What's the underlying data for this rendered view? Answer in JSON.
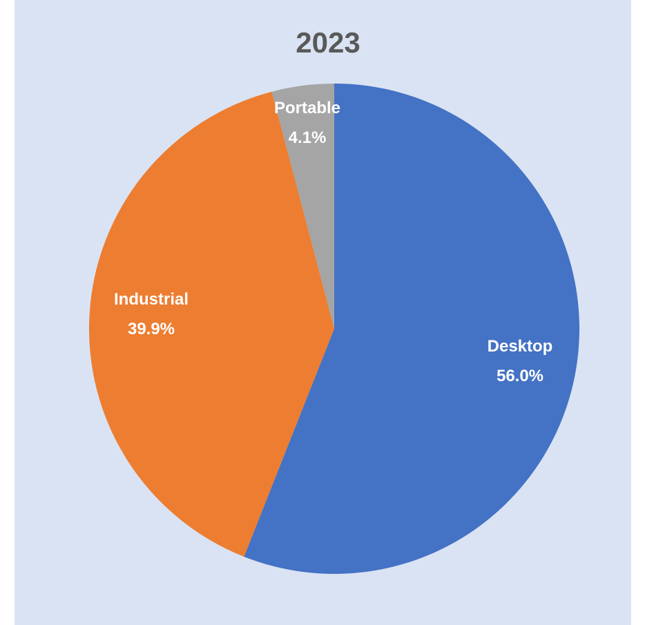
{
  "chart_data": {
    "type": "pie",
    "title": "2023",
    "slices": [
      {
        "label": "Desktop",
        "value": 56.0,
        "display": "56.0%",
        "color": "#4472c4"
      },
      {
        "label": "Industrial",
        "value": 39.9,
        "display": "39.9%",
        "color": "#ed7d31"
      },
      {
        "label": "Portable",
        "value": 4.1,
        "display": "4.1%",
        "color": "#a5a5a5"
      }
    ],
    "start_angle": "12 o'clock",
    "direction": "clockwise",
    "background_color": "#dae3f3",
    "label_color": "#ffffff",
    "title_color": "#595959"
  }
}
